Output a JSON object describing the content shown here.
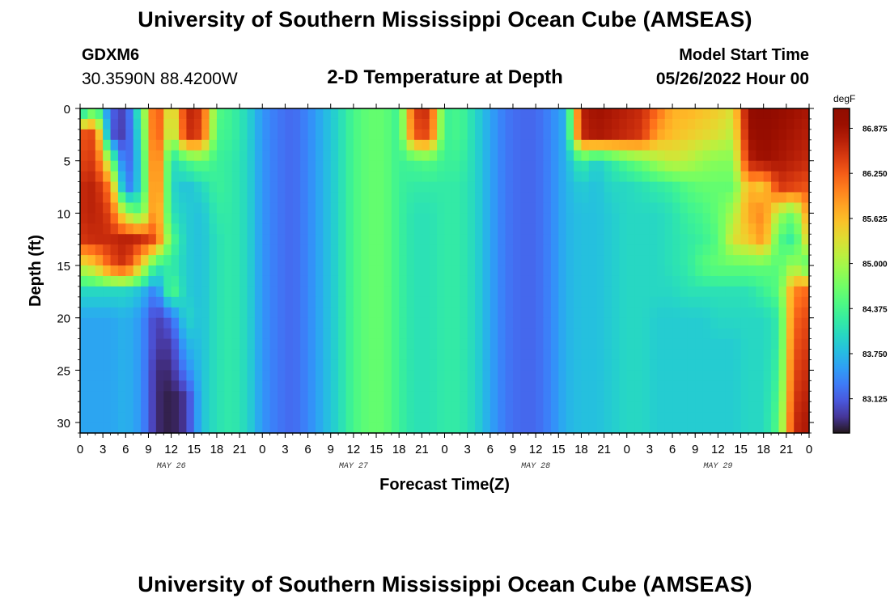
{
  "header": {
    "title": "University of Southern Mississippi Ocean Cube (AMSEAS)",
    "station_id": "GDXM6",
    "station_coords": "30.3590N  88.4200W",
    "plot_title": "2-D Temperature at Depth",
    "model_start_label": "Model Start Time",
    "model_start_value": "05/26/2022 Hour 00"
  },
  "footer": {
    "title": "University of Southern Mississippi Ocean Cube (AMSEAS)"
  },
  "chart_data": {
    "type": "heatmap",
    "title": "2-D Temperature at Depth",
    "xlabel": "Forecast Time(Z)",
    "ylabel": "Depth (ft)",
    "x_unit": "hours since 05/26/2022 00Z",
    "xlim": [
      0,
      96
    ],
    "ylim": [
      0,
      31
    ],
    "y_inverted": true,
    "x_tick_values": [
      0,
      3,
      6,
      9,
      12,
      15,
      18,
      21,
      24,
      27,
      30,
      33,
      36,
      39,
      42,
      45,
      48,
      51,
      54,
      57,
      60,
      63,
      66,
      69,
      72,
      75,
      78,
      81,
      84,
      87,
      90,
      93,
      96
    ],
    "x_tick_labels": [
      "0",
      "3",
      "6",
      "9",
      "12",
      "15",
      "18",
      "21",
      "0",
      "3",
      "6",
      "9",
      "12",
      "15",
      "18",
      "21",
      "0",
      "3",
      "6",
      "9",
      "12",
      "15",
      "18",
      "21",
      "0",
      "3",
      "6",
      "9",
      "12",
      "15",
      "18",
      "21",
      "0"
    ],
    "day_labels": [
      {
        "x": 12,
        "text": "MAY 26"
      },
      {
        "x": 36,
        "text": "MAY 27"
      },
      {
        "x": 60,
        "text": "MAY 28"
      },
      {
        "x": 84,
        "text": "MAY 29"
      }
    ],
    "y_ticks": [
      0,
      5,
      10,
      15,
      20,
      25,
      30
    ],
    "colorbar": {
      "unit": "degF",
      "min": 82.65,
      "max": 87.15,
      "ticks": [
        86.875,
        86.25,
        85.625,
        85.0,
        84.375,
        83.75,
        83.125
      ],
      "tick_labels": [
        "86.875",
        "86.250",
        "85.625",
        "85.000",
        "84.375",
        "83.750",
        "83.125"
      ],
      "colormap": "turbo"
    },
    "time_columns_h": [
      0,
      2,
      4,
      6,
      8,
      10,
      12,
      14,
      16,
      18,
      20,
      22,
      24,
      26,
      28,
      30,
      32,
      34,
      36,
      38,
      40,
      42,
      44,
      46,
      48,
      50,
      52,
      54,
      56,
      58,
      60,
      62,
      64,
      66,
      68,
      70,
      72,
      74,
      76,
      78,
      80,
      82,
      84,
      86,
      88,
      90,
      92,
      94,
      96
    ],
    "depth_rows_ft": [
      0,
      2.5,
      5,
      7.5,
      10,
      12.5,
      15,
      17.5,
      20,
      22.5,
      25,
      27.5,
      30
    ],
    "values_degF": [
      [
        83.6,
        84.5,
        83.2,
        82.9,
        84.4,
        86.6,
        85.0,
        86.7,
        86.5,
        84.5,
        84.3,
        84.0,
        83.5,
        83.3,
        83.2,
        83.4,
        83.7,
        84.0,
        84.4,
        84.6,
        84.6,
        84.3,
        86.5,
        86.6,
        84.3,
        84.4,
        84.0,
        83.6,
        83.3,
        83.2,
        83.2,
        83.4,
        83.7,
        86.7,
        86.9,
        86.8,
        86.7,
        86.6,
        86.2,
        85.7,
        85.7,
        85.6,
        85.5,
        85.3,
        87.0,
        87.1,
        87.0,
        86.9,
        86.8
      ],
      [
        86.3,
        86.4,
        83.1,
        82.9,
        84.2,
        86.6,
        84.8,
        86.6,
        86.4,
        84.4,
        84.3,
        84.0,
        83.5,
        83.3,
        83.2,
        83.4,
        83.7,
        84.0,
        84.4,
        84.6,
        84.6,
        84.3,
        86.3,
        86.4,
        84.3,
        84.4,
        84.0,
        83.6,
        83.3,
        83.2,
        83.2,
        83.4,
        83.7,
        86.6,
        86.8,
        86.7,
        86.6,
        86.5,
        85.8,
        85.6,
        85.5,
        85.4,
        85.3,
        85.1,
        86.9,
        87.0,
        86.9,
        86.8,
        86.7
      ],
      [
        86.4,
        86.5,
        84.8,
        83.0,
        84.0,
        86.5,
        84.0,
        84.4,
        84.6,
        84.3,
        84.2,
        84.0,
        83.5,
        83.3,
        83.2,
        83.4,
        83.7,
        84.0,
        84.4,
        84.6,
        84.6,
        84.3,
        84.4,
        84.5,
        84.3,
        84.3,
        84.0,
        83.6,
        83.3,
        83.2,
        83.2,
        83.4,
        83.7,
        84.3,
        83.9,
        84.2,
        84.5,
        84.7,
        85.0,
        85.2,
        85.1,
        84.9,
        84.8,
        84.8,
        86.7,
        86.9,
        86.8,
        86.7,
        86.6
      ],
      [
        86.6,
        86.7,
        86.0,
        83.2,
        84.0,
        86.4,
        84.0,
        83.8,
        84.0,
        84.3,
        84.2,
        84.0,
        83.5,
        83.3,
        83.2,
        83.4,
        83.7,
        84.0,
        84.4,
        84.6,
        84.6,
        84.3,
        84.2,
        84.2,
        84.2,
        84.2,
        84.0,
        83.6,
        83.3,
        83.2,
        83.2,
        83.4,
        83.7,
        83.9,
        83.8,
        84.0,
        84.0,
        84.1,
        84.2,
        84.3,
        84.5,
        84.6,
        84.6,
        84.6,
        85.7,
        85.5,
        86.5,
        86.4,
        86.3
      ],
      [
        86.6,
        86.7,
        86.4,
        85.0,
        84.5,
        86.2,
        84.1,
        83.9,
        83.8,
        84.2,
        84.2,
        84.0,
        83.5,
        83.3,
        83.2,
        83.4,
        83.7,
        84.0,
        84.4,
        84.6,
        84.6,
        84.3,
        84.1,
        84.1,
        84.2,
        84.2,
        84.0,
        83.6,
        83.3,
        83.2,
        83.2,
        83.4,
        83.7,
        83.8,
        83.8,
        83.9,
        84.0,
        84.0,
        84.0,
        84.1,
        84.3,
        84.4,
        84.6,
        85.0,
        85.8,
        86.0,
        85.0,
        84.6,
        86.0
      ],
      [
        86.5,
        86.6,
        86.6,
        86.7,
        86.6,
        86.3,
        84.5,
        83.9,
        83.8,
        84.1,
        84.2,
        84.0,
        83.5,
        83.3,
        83.2,
        83.4,
        83.7,
        84.0,
        84.4,
        84.6,
        84.6,
        84.3,
        84.1,
        84.1,
        84.2,
        84.2,
        84.0,
        83.6,
        83.3,
        83.2,
        83.2,
        83.4,
        83.7,
        83.8,
        83.8,
        83.9,
        84.0,
        84.0,
        84.0,
        84.1,
        84.2,
        84.3,
        84.5,
        85.3,
        85.5,
        85.9,
        84.5,
        84.2,
        85.6
      ],
      [
        85.2,
        85.5,
        86.3,
        86.6,
        85.5,
        84.2,
        84.2,
        83.9,
        83.8,
        84.1,
        84.2,
        84.0,
        83.5,
        83.3,
        83.2,
        83.4,
        83.7,
        84.0,
        84.4,
        84.6,
        84.6,
        84.3,
        84.1,
        84.1,
        84.2,
        84.2,
        84.0,
        83.6,
        83.3,
        83.2,
        83.2,
        83.4,
        83.7,
        83.8,
        83.8,
        83.9,
        84.0,
        84.0,
        84.0,
        84.1,
        84.2,
        84.5,
        84.6,
        84.6,
        84.6,
        84.6,
        84.5,
        85.0,
        84.4
      ],
      [
        84.0,
        84.0,
        84.0,
        84.0,
        83.8,
        83.3,
        84.5,
        83.9,
        83.8,
        84.1,
        84.2,
        84.0,
        83.5,
        83.3,
        83.2,
        83.4,
        83.7,
        84.0,
        84.4,
        84.6,
        84.6,
        84.3,
        84.1,
        84.1,
        84.2,
        84.2,
        84.0,
        83.6,
        83.3,
        83.2,
        83.2,
        83.4,
        83.7,
        83.8,
        83.8,
        83.9,
        84.0,
        84.0,
        84.0,
        84.0,
        84.1,
        84.1,
        84.1,
        84.1,
        84.1,
        84.3,
        84.5,
        86.0,
        86.2
      ],
      [
        83.6,
        83.6,
        83.6,
        83.7,
        83.5,
        82.9,
        83.2,
        84.0,
        83.8,
        84.1,
        84.2,
        84.0,
        83.5,
        83.3,
        83.2,
        83.4,
        83.7,
        84.0,
        84.4,
        84.6,
        84.6,
        84.3,
        84.1,
        84.1,
        84.2,
        84.2,
        84.0,
        83.6,
        83.3,
        83.2,
        83.2,
        83.4,
        83.7,
        83.8,
        83.8,
        83.9,
        84.0,
        84.0,
        83.9,
        83.9,
        83.9,
        83.9,
        84.0,
        84.0,
        84.0,
        84.0,
        84.2,
        86.2,
        86.4
      ],
      [
        83.6,
        83.6,
        83.6,
        83.7,
        83.5,
        82.9,
        82.9,
        83.7,
        83.8,
        84.1,
        84.2,
        84.0,
        83.5,
        83.3,
        83.2,
        83.4,
        83.7,
        84.0,
        84.4,
        84.6,
        84.6,
        84.3,
        84.1,
        84.1,
        84.2,
        84.2,
        84.0,
        83.6,
        83.3,
        83.2,
        83.2,
        83.4,
        83.7,
        83.8,
        83.8,
        83.9,
        84.0,
        84.0,
        83.9,
        83.9,
        83.9,
        83.9,
        83.9,
        83.9,
        84.0,
        84.0,
        84.2,
        86.3,
        86.5
      ],
      [
        83.6,
        83.6,
        83.6,
        83.7,
        83.5,
        82.8,
        82.8,
        83.4,
        83.8,
        84.1,
        84.2,
        84.0,
        83.5,
        83.3,
        83.2,
        83.4,
        83.7,
        84.0,
        84.4,
        84.6,
        84.6,
        84.3,
        84.1,
        84.1,
        84.2,
        84.2,
        84.0,
        83.6,
        83.3,
        83.2,
        83.2,
        83.4,
        83.7,
        83.8,
        83.8,
        83.9,
        84.0,
        84.0,
        83.9,
        83.9,
        83.9,
        83.9,
        83.9,
        83.9,
        84.0,
        84.0,
        84.3,
        86.4,
        86.6
      ],
      [
        83.6,
        83.6,
        83.6,
        83.7,
        83.5,
        82.8,
        82.7,
        82.9,
        83.8,
        84.1,
        84.2,
        84.0,
        83.5,
        83.3,
        83.2,
        83.4,
        83.7,
        84.0,
        84.4,
        84.6,
        84.6,
        84.3,
        84.1,
        84.1,
        84.2,
        84.2,
        84.0,
        83.6,
        83.3,
        83.2,
        83.2,
        83.4,
        83.7,
        83.8,
        83.8,
        83.9,
        84.0,
        84.0,
        83.9,
        83.9,
        83.9,
        83.9,
        83.9,
        83.9,
        84.0,
        84.0,
        84.4,
        86.5,
        86.7
      ],
      [
        83.6,
        83.6,
        83.6,
        83.7,
        83.5,
        82.8,
        82.7,
        82.9,
        83.8,
        84.1,
        84.2,
        84.0,
        83.5,
        83.3,
        83.2,
        83.4,
        83.7,
        84.0,
        84.4,
        84.6,
        84.6,
        84.3,
        84.1,
        84.1,
        84.2,
        84.2,
        84.0,
        83.6,
        83.3,
        83.2,
        83.2,
        83.4,
        83.7,
        83.8,
        83.8,
        83.9,
        84.0,
        84.0,
        83.9,
        83.9,
        83.9,
        83.9,
        83.9,
        83.9,
        84.0,
        84.0,
        84.5,
        86.6,
        86.8
      ]
    ]
  }
}
